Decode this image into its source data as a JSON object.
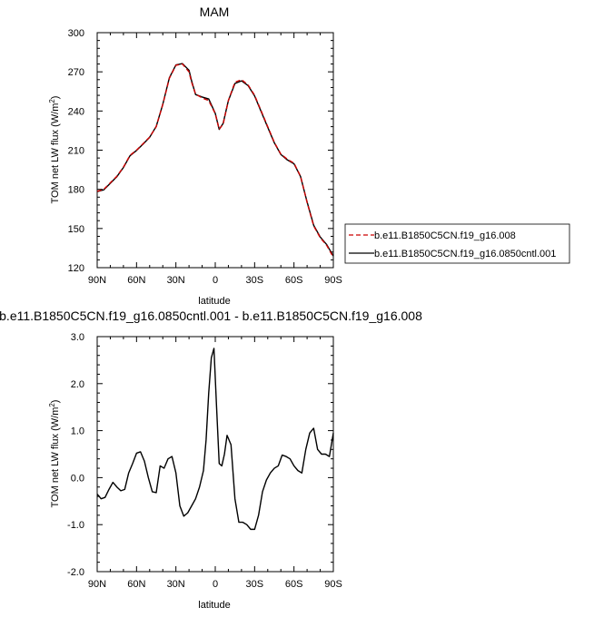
{
  "chart_data": [
    {
      "type": "line",
      "title": "MAM",
      "xlabel": "latitude",
      "ylabel": "TOM net LW flux (W/m²)",
      "x_tick_labels": [
        "90N",
        "60N",
        "30N",
        "0",
        "30S",
        "60S",
        "90S"
      ],
      "x_ticks": [
        90,
        60,
        30,
        0,
        -30,
        -60,
        -90
      ],
      "y_ticks": [
        120,
        150,
        180,
        210,
        240,
        270,
        300
      ],
      "y_tick_labels": [
        "120",
        "150",
        "180",
        "210",
        "240",
        "270",
        "300"
      ],
      "xlim": [
        90,
        -90
      ],
      "ylim": [
        120,
        300
      ],
      "x": [
        90,
        85,
        80,
        75,
        70,
        65,
        60,
        55,
        50,
        45,
        40,
        35,
        30,
        25,
        20,
        18,
        15,
        10,
        5,
        0,
        -3,
        -6,
        -10,
        -15,
        -20,
        -25,
        -30,
        -35,
        -40,
        -45,
        -50,
        -55,
        -60,
        -65,
        -70,
        -75,
        -80,
        -85,
        -90
      ],
      "series": [
        {
          "name": "b.e11.B1850C5CN.f19_g16.008",
          "color": "#cc0000",
          "dash": "dashed",
          "values": [
            178.5,
            180,
            185,
            190,
            197,
            206,
            210,
            215,
            220,
            228,
            245,
            265,
            275,
            276,
            270,
            262,
            253,
            250,
            248,
            238,
            226,
            230,
            248,
            262,
            264,
            260,
            252,
            240,
            228,
            216,
            207,
            203,
            200,
            190,
            170,
            152,
            143,
            137,
            128
          ]
        },
        {
          "name": "b.e11.B1850C5CN.f19_g16.0850cntl.001",
          "color": "#000000",
          "dash": "solid",
          "values": [
            178.2,
            179.6,
            184.6,
            189.7,
            196.7,
            205.7,
            209.8,
            214.7,
            219.9,
            228.2,
            245.1,
            265.4,
            275.3,
            276.3,
            271.2,
            262.9,
            252.6,
            250.7,
            249.2,
            238.2,
            225.9,
            230.5,
            248.0,
            261.1,
            263.1,
            259.5,
            251.5,
            239.5,
            227.5,
            215.7,
            206.7,
            202.5,
            199.6,
            189.8,
            170.3,
            152.5,
            143.5,
            137.6,
            128.9
          ]
        }
      ],
      "legend": {
        "position": "right"
      },
      "grid": false
    },
    {
      "type": "line",
      "title": "b.e11.B1850C5CN.f19_g16.0850cntl.001 - b.e11.B1850C5CN.f19_g16.008",
      "xlabel": "latitude",
      "ylabel": "TOM net LW flux (W/m²)",
      "x_tick_labels": [
        "90N",
        "60N",
        "30N",
        "0",
        "30S",
        "60S",
        "90S"
      ],
      "x_ticks": [
        90,
        60,
        30,
        0,
        -30,
        -60,
        -90
      ],
      "y_ticks": [
        -2.0,
        -1.0,
        0.0,
        1.0,
        2.0,
        3.0
      ],
      "y_tick_labels": [
        "-2.0",
        "-1.0",
        "0.0",
        "1.0",
        "2.0",
        "3.0"
      ],
      "xlim": [
        90,
        -90
      ],
      "ylim": [
        -2.0,
        3.0
      ],
      "x": [
        90,
        87,
        84,
        81,
        78,
        75,
        72,
        69,
        66,
        63,
        60,
        57,
        54,
        51,
        48,
        45,
        42,
        39,
        36,
        33,
        30,
        27,
        24,
        21,
        18,
        15,
        12,
        9,
        7,
        5,
        3,
        1,
        -1,
        -3,
        -5,
        -7,
        -9,
        -12,
        -15,
        -18,
        -21,
        -24,
        -27,
        -30,
        -33,
        -36,
        -39,
        -42,
        -45,
        -48,
        -51,
        -54,
        -57,
        -60,
        -63,
        -66,
        -69,
        -72,
        -75,
        -78,
        -81,
        -84,
        -87,
        -90
      ],
      "series": [
        {
          "name": "",
          "color": "#000000",
          "dash": "solid",
          "values": [
            -0.35,
            -0.45,
            -0.42,
            -0.25,
            -0.1,
            -0.2,
            -0.28,
            -0.25,
            0.1,
            0.3,
            0.52,
            0.55,
            0.35,
            0.0,
            -0.3,
            -0.32,
            0.25,
            0.2,
            0.4,
            0.45,
            0.1,
            -0.6,
            -0.82,
            -0.75,
            -0.6,
            -0.45,
            -0.2,
            0.15,
            0.8,
            1.8,
            2.55,
            2.75,
            1.5,
            0.3,
            0.25,
            0.5,
            0.9,
            0.7,
            -0.45,
            -0.95,
            -0.95,
            -1.0,
            -1.1,
            -1.1,
            -0.8,
            -0.3,
            -0.05,
            0.1,
            0.2,
            0.25,
            0.48,
            0.45,
            0.4,
            0.25,
            0.15,
            0.1,
            0.6,
            0.95,
            1.05,
            0.6,
            0.5,
            0.5,
            0.45,
            0.95
          ]
        }
      ],
      "grid": false
    }
  ]
}
